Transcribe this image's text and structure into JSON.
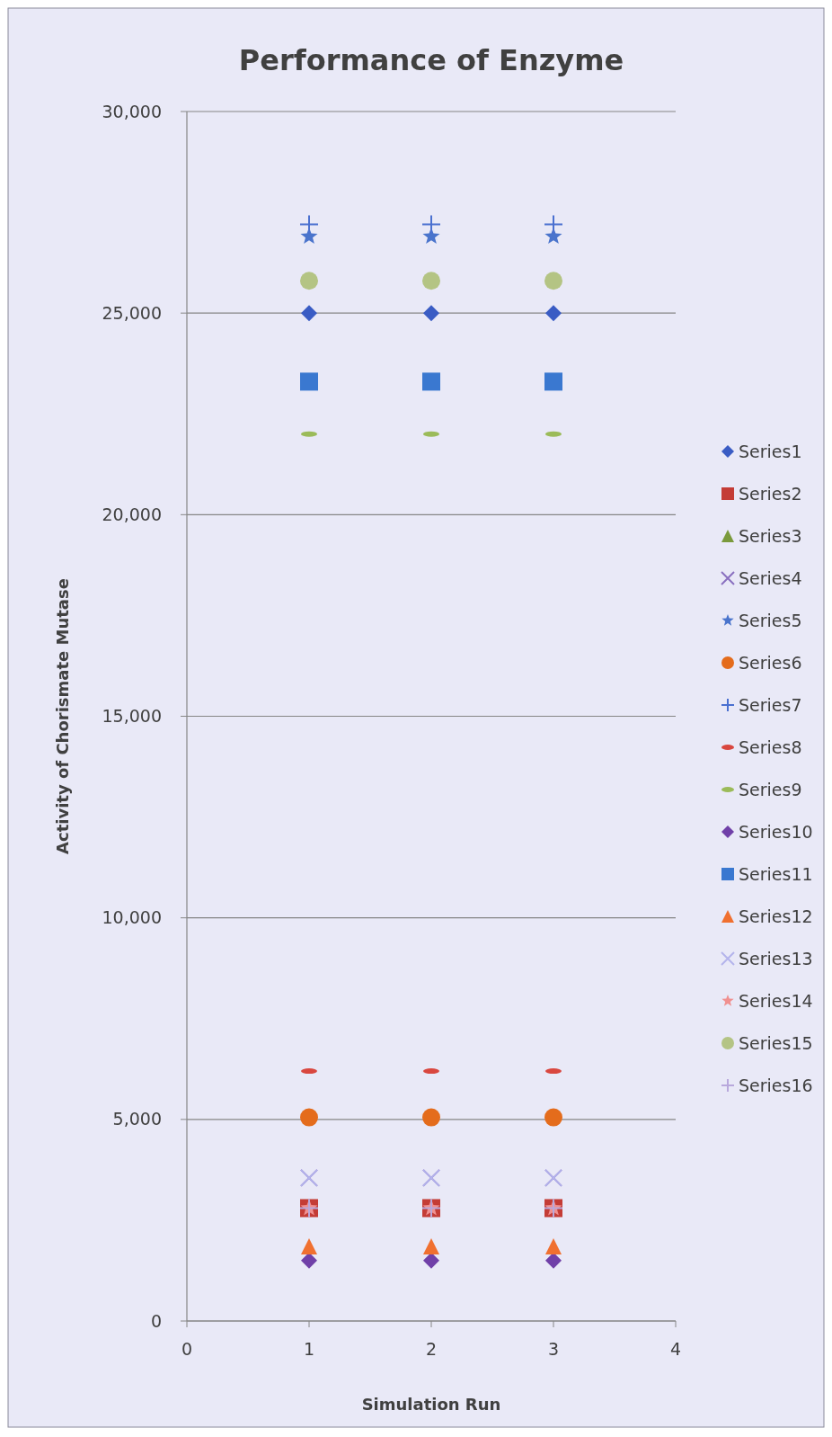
{
  "chart_data": {
    "type": "scatter",
    "title": "Performance of Enzyme",
    "xlabel": "Simulation Run",
    "ylabel": "Activity of Chorismate Mutase",
    "x": [
      1,
      2,
      3
    ],
    "xlim": [
      0,
      4
    ],
    "xticks": [
      0,
      1,
      2,
      3,
      4
    ],
    "ylim": [
      0,
      30000
    ],
    "yticks": [
      {
        "value": 0,
        "label": "0"
      },
      {
        "value": 5000,
        "label": "5,000"
      },
      {
        "value": 10000,
        "label": "10,000"
      },
      {
        "value": 15000,
        "label": "15,000"
      },
      {
        "value": 20000,
        "label": "20,000"
      },
      {
        "value": 25000,
        "label": "25,000"
      },
      {
        "value": 30000,
        "label": "30,000"
      }
    ],
    "grid": "y",
    "legend": "right",
    "series": [
      {
        "name": "Series1",
        "color": "#3a5cc4",
        "marker": "diamond",
        "values": [
          25000,
          25000,
          25000
        ]
      },
      {
        "name": "Series2",
        "color": "#c43c36",
        "marker": "square",
        "values": [
          2800,
          2800,
          2800
        ]
      },
      {
        "name": "Series3",
        "color": "#7a9a3c",
        "marker": "triangle",
        "values": [
          null,
          null,
          null
        ]
      },
      {
        "name": "Series4",
        "color": "#8a70c0",
        "marker": "cross",
        "values": [
          3550,
          3550,
          3550
        ]
      },
      {
        "name": "Series5",
        "color": "#4a74cc",
        "marker": "star",
        "values": [
          26900,
          26900,
          26900
        ]
      },
      {
        "name": "Series6",
        "color": "#e46c1c",
        "marker": "circle",
        "values": [
          5050,
          5050,
          5050
        ]
      },
      {
        "name": "Series7",
        "color": "#4a70d0",
        "marker": "plus",
        "values": [
          27200,
          27200,
          27200
        ]
      },
      {
        "name": "Series8",
        "color": "#d9473f",
        "values": [
          6200,
          6200,
          6200
        ]
      },
      {
        "name": "Series9",
        "color": "#9bbb59",
        "values": [
          22000,
          22000,
          22000
        ]
      },
      {
        "name": "Series10",
        "color": "#7040a8",
        "marker": "diamond",
        "values": [
          1500,
          1500,
          1500
        ]
      },
      {
        "name": "Series11",
        "color": "#3a78d0",
        "marker": "square",
        "values": [
          23300,
          23300,
          23300
        ]
      },
      {
        "name": "Series12",
        "color": "#f07030",
        "marker": "triangle",
        "values": [
          1850,
          1850,
          1850
        ]
      },
      {
        "name": "Series13",
        "color": "#b4b4ec",
        "marker": "cross",
        "values": [
          3550,
          3550,
          3550
        ]
      },
      {
        "name": "Series14",
        "color": "#f09090",
        "marker": "star",
        "values": [
          2800,
          2800,
          2800
        ]
      },
      {
        "name": "Series15",
        "color": "#b4c484",
        "marker": "circle",
        "values": [
          25800,
          25800,
          25800
        ]
      },
      {
        "name": "Series16",
        "color": "#b8a8dc",
        "marker": "plus",
        "values": [
          2800,
          2800,
          2800
        ]
      }
    ]
  }
}
